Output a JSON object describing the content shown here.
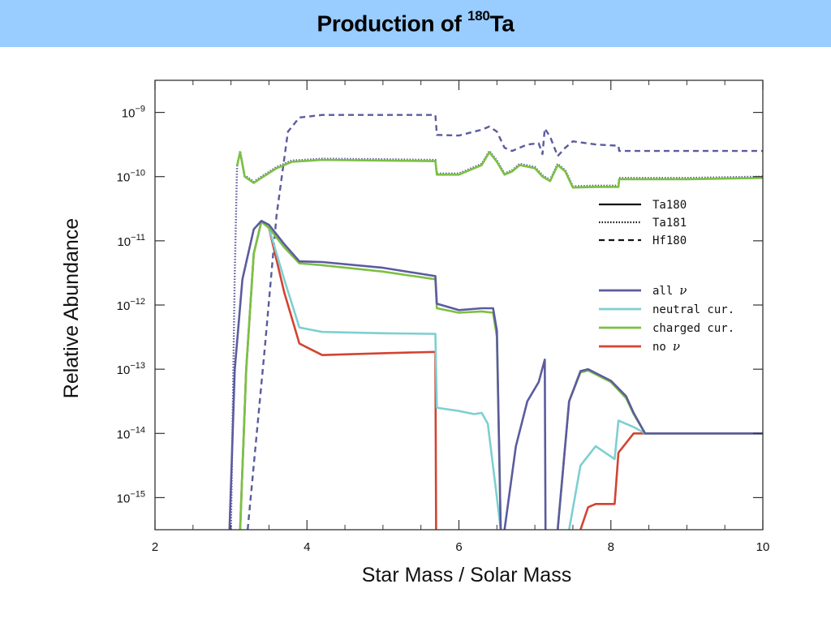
{
  "header": {
    "title_prefix": "Production of ",
    "title_sup": "180",
    "title_suffix": "Ta",
    "background": "#99ccff"
  },
  "chart_data": {
    "type": "line",
    "xlabel": "Star Mass / Solar Mass",
    "ylabel": "Relative Abundance",
    "xlim": [
      2,
      10
    ],
    "ylim_log10": [
      -15.5,
      -8.5
    ],
    "yscale": "log",
    "x_ticks": [
      2,
      4,
      6,
      8,
      10
    ],
    "y_tick_exponents": [
      -9,
      -10,
      -11,
      -12,
      -13,
      -14,
      -15
    ],
    "y_tick_base": "10",
    "grid": false,
    "legend_isotopes": [
      {
        "label": "Ta180",
        "dash": "solid"
      },
      {
        "label": "Ta181",
        "dash": "dotted"
      },
      {
        "label": "Hf180",
        "dash": "dashed"
      }
    ],
    "legend_models": [
      {
        "label": "all",
        "nu": "ν",
        "color": "#5b5b9e"
      },
      {
        "label": "neutral  cur.",
        "nu": "",
        "color": "#7ecfd0"
      },
      {
        "label": "charged cur.",
        "nu": "",
        "color": "#7cc043"
      },
      {
        "label": "no",
        "nu": "ν",
        "color": "#d24430"
      }
    ],
    "series": [
      {
        "isotope": "Hf180",
        "model": "all",
        "dash": "dashed",
        "color": "#5b5b9e",
        "points": [
          [
            3.22,
            -15.5
          ],
          [
            3.45,
            -12.6
          ],
          [
            3.6,
            -10.6
          ],
          [
            3.75,
            -9.3
          ],
          [
            3.9,
            -9.08
          ],
          [
            4.2,
            -9.04
          ],
          [
            5.0,
            -9.04
          ],
          [
            5.69,
            -9.04
          ],
          [
            5.71,
            -9.35
          ],
          [
            6.0,
            -9.36
          ],
          [
            6.3,
            -9.27
          ],
          [
            6.4,
            -9.22
          ],
          [
            6.5,
            -9.3
          ],
          [
            6.6,
            -9.55
          ],
          [
            6.7,
            -9.6
          ],
          [
            6.9,
            -9.5
          ],
          [
            7.05,
            -9.48
          ],
          [
            7.1,
            -9.65
          ],
          [
            7.13,
            -9.25
          ],
          [
            7.2,
            -9.38
          ],
          [
            7.3,
            -9.68
          ],
          [
            7.4,
            -9.55
          ],
          [
            7.5,
            -9.45
          ],
          [
            7.8,
            -9.5
          ],
          [
            8.1,
            -9.52
          ],
          [
            8.11,
            -9.6
          ],
          [
            9.0,
            -9.6
          ],
          [
            10.0,
            -9.6
          ]
        ]
      },
      {
        "isotope": "Ta181",
        "model": "all",
        "dash": "dotted",
        "color": "#5b5b9e",
        "points": [
          [
            3.0,
            -15.5
          ],
          [
            3.05,
            -11.5
          ],
          [
            3.08,
            -9.85
          ],
          [
            3.12,
            -9.6
          ],
          [
            3.18,
            -9.98
          ],
          [
            3.3,
            -10.08
          ],
          [
            3.4,
            -10.0
          ],
          [
            3.6,
            -9.85
          ],
          [
            3.8,
            -9.75
          ],
          [
            4.2,
            -9.72
          ],
          [
            5.0,
            -9.73
          ],
          [
            5.69,
            -9.74
          ],
          [
            5.71,
            -9.95
          ],
          [
            6.0,
            -9.95
          ],
          [
            6.3,
            -9.8
          ],
          [
            6.4,
            -9.6
          ],
          [
            6.5,
            -9.75
          ],
          [
            6.6,
            -9.95
          ],
          [
            6.7,
            -9.9
          ],
          [
            6.8,
            -9.8
          ],
          [
            7.0,
            -9.85
          ],
          [
            7.1,
            -9.98
          ],
          [
            7.2,
            -10.05
          ],
          [
            7.3,
            -9.8
          ],
          [
            7.4,
            -9.9
          ],
          [
            7.5,
            -10.15
          ],
          [
            7.8,
            -10.14
          ],
          [
            8.1,
            -10.14
          ],
          [
            8.11,
            -10.02
          ],
          [
            9.0,
            -10.02
          ],
          [
            10.0,
            -10.0
          ]
        ]
      },
      {
        "isotope": "Ta181",
        "model": "charged cur.",
        "dash": "solid",
        "color": "#7cc043",
        "points": [
          [
            3.08,
            -9.83
          ],
          [
            3.12,
            -9.62
          ],
          [
            3.18,
            -10.0
          ],
          [
            3.3,
            -10.1
          ],
          [
            3.4,
            -10.02
          ],
          [
            3.6,
            -9.87
          ],
          [
            3.8,
            -9.77
          ],
          [
            4.2,
            -9.74
          ],
          [
            5.0,
            -9.75
          ],
          [
            5.69,
            -9.76
          ],
          [
            5.71,
            -9.97
          ],
          [
            6.0,
            -9.97
          ],
          [
            6.3,
            -9.82
          ],
          [
            6.4,
            -9.62
          ],
          [
            6.5,
            -9.77
          ],
          [
            6.6,
            -9.97
          ],
          [
            6.7,
            -9.92
          ],
          [
            6.8,
            -9.82
          ],
          [
            7.0,
            -9.87
          ],
          [
            7.1,
            -10.0
          ],
          [
            7.2,
            -10.07
          ],
          [
            7.3,
            -9.82
          ],
          [
            7.4,
            -9.92
          ],
          [
            7.5,
            -10.17
          ],
          [
            7.8,
            -10.16
          ],
          [
            8.1,
            -10.16
          ],
          [
            8.11,
            -10.04
          ],
          [
            9.0,
            -10.04
          ],
          [
            10.0,
            -10.02
          ]
        ]
      },
      {
        "isotope": "Ta180",
        "model": "no",
        "dash": "solid",
        "color": "#d24430",
        "points": [
          [
            3.12,
            -15.5
          ],
          [
            3.2,
            -13.0
          ],
          [
            3.3,
            -11.2
          ],
          [
            3.4,
            -10.7
          ],
          [
            3.5,
            -10.8
          ],
          [
            3.7,
            -11.8
          ],
          [
            3.9,
            -12.6
          ],
          [
            4.2,
            -12.78
          ],
          [
            5.0,
            -12.75
          ],
          [
            5.69,
            -12.73
          ],
          [
            5.7,
            -15.5
          ]
        ]
      },
      {
        "isotope": "Ta180",
        "model": "no",
        "dash": "solid",
        "color": "#d24430",
        "points": [
          [
            7.6,
            -15.5
          ],
          [
            7.7,
            -15.15
          ],
          [
            7.8,
            -15.1
          ],
          [
            8.05,
            -15.1
          ],
          [
            8.1,
            -14.3
          ],
          [
            8.3,
            -14.0
          ],
          [
            10.0,
            -14.0
          ]
        ]
      },
      {
        "isotope": "Ta180",
        "model": "neutral  cur.",
        "dash": "solid",
        "color": "#7ecfd0",
        "points": [
          [
            3.12,
            -15.5
          ],
          [
            3.2,
            -13.0
          ],
          [
            3.3,
            -11.2
          ],
          [
            3.4,
            -10.7
          ],
          [
            3.5,
            -10.8
          ],
          [
            3.7,
            -11.6
          ],
          [
            3.9,
            -12.35
          ],
          [
            4.2,
            -12.42
          ],
          [
            5.0,
            -12.44
          ],
          [
            5.69,
            -12.45
          ],
          [
            5.71,
            -13.6
          ],
          [
            6.0,
            -13.65
          ],
          [
            6.2,
            -13.7
          ],
          [
            6.3,
            -13.68
          ],
          [
            6.38,
            -13.85
          ],
          [
            6.5,
            -15.0
          ],
          [
            6.55,
            -15.5
          ]
        ]
      },
      {
        "isotope": "Ta180",
        "model": "neutral  cur.",
        "dash": "solid",
        "color": "#7ecfd0",
        "points": [
          [
            7.45,
            -15.5
          ],
          [
            7.6,
            -14.5
          ],
          [
            7.8,
            -14.2
          ],
          [
            8.05,
            -14.4
          ],
          [
            8.1,
            -13.8
          ],
          [
            8.3,
            -13.9
          ],
          [
            8.45,
            -14.0
          ],
          [
            10.0,
            -14.0
          ]
        ]
      },
      {
        "isotope": "Ta180",
        "model": "charged cur.",
        "dash": "solid",
        "color": "#7cc043",
        "points": [
          [
            3.12,
            -15.5
          ],
          [
            3.2,
            -13.0
          ],
          [
            3.3,
            -11.2
          ],
          [
            3.4,
            -10.7
          ],
          [
            3.5,
            -10.8
          ],
          [
            3.7,
            -11.1
          ],
          [
            3.9,
            -11.35
          ],
          [
            4.2,
            -11.38
          ],
          [
            5.0,
            -11.48
          ],
          [
            5.69,
            -11.6
          ],
          [
            5.71,
            -12.05
          ],
          [
            6.0,
            -12.12
          ],
          [
            6.3,
            -12.1
          ],
          [
            6.45,
            -12.12
          ],
          [
            6.5,
            -12.5
          ],
          [
            6.55,
            -15.5
          ]
        ]
      },
      {
        "isotope": "Ta180",
        "model": "charged cur.",
        "dash": "solid",
        "color": "#7cc043",
        "points": [
          [
            7.3,
            -15.5
          ],
          [
            7.45,
            -13.5
          ],
          [
            7.6,
            -13.05
          ],
          [
            7.7,
            -13.02
          ],
          [
            8.0,
            -13.2
          ],
          [
            8.2,
            -13.45
          ],
          [
            8.3,
            -13.7
          ],
          [
            8.45,
            -14.0
          ],
          [
            10.0,
            -14.0
          ]
        ]
      },
      {
        "isotope": "Ta180",
        "model": "all",
        "dash": "solid",
        "color": "#5b5b9e",
        "points": [
          [
            2.98,
            -15.5
          ],
          [
            3.05,
            -13.0
          ],
          [
            3.15,
            -11.6
          ],
          [
            3.3,
            -10.82
          ],
          [
            3.4,
            -10.69
          ],
          [
            3.5,
            -10.75
          ],
          [
            3.7,
            -11.05
          ],
          [
            3.9,
            -11.32
          ],
          [
            4.2,
            -11.33
          ],
          [
            5.0,
            -11.42
          ],
          [
            5.69,
            -11.55
          ],
          [
            5.71,
            -11.98
          ],
          [
            6.0,
            -12.08
          ],
          [
            6.3,
            -12.05
          ],
          [
            6.45,
            -12.05
          ],
          [
            6.5,
            -12.4
          ],
          [
            6.55,
            -15.5
          ]
        ]
      },
      {
        "isotope": "Ta180",
        "model": "all",
        "dash": "solid",
        "color": "#5b5b9e",
        "points": [
          [
            6.6,
            -15.5
          ],
          [
            6.75,
            -14.2
          ],
          [
            6.9,
            -13.5
          ],
          [
            7.05,
            -13.2
          ],
          [
            7.13,
            -12.85
          ],
          [
            7.14,
            -15.5
          ]
        ]
      },
      {
        "isotope": "Ta180",
        "model": "all",
        "dash": "solid",
        "color": "#5b5b9e",
        "points": [
          [
            7.3,
            -15.5
          ],
          [
            7.45,
            -13.5
          ],
          [
            7.6,
            -13.03
          ],
          [
            7.7,
            -13.0
          ],
          [
            8.0,
            -13.18
          ],
          [
            8.2,
            -13.42
          ],
          [
            8.3,
            -13.68
          ],
          [
            8.45,
            -14.0
          ],
          [
            10.0,
            -14.0
          ]
        ]
      }
    ]
  }
}
